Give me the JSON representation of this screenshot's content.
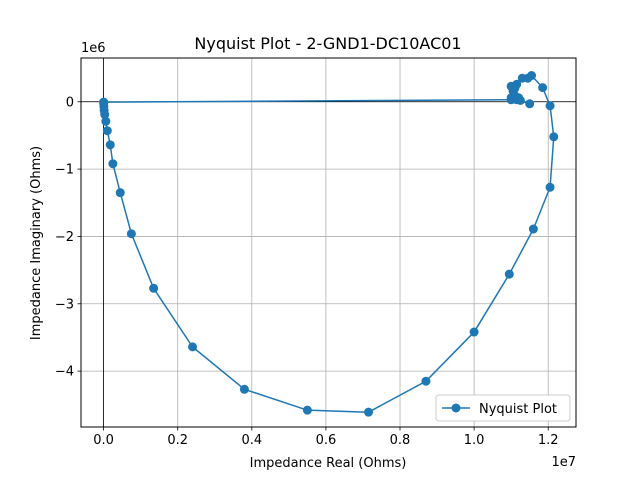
{
  "chart_data": {
    "type": "line",
    "title": "Nyquist Plot - 2-GND1-DC10AC01",
    "xlabel": "Impedance Real (Ohms)",
    "ylabel": "Impedance Imaginary (Ohms)",
    "x_offset_label": "1e7",
    "y_offset_label": "1e6",
    "xlim": [
      -610000,
      12750000
    ],
    "ylim": [
      -4830000,
      650000
    ],
    "x_ticks": [
      0,
      2000000,
      4000000,
      6000000,
      8000000,
      10000000,
      12000000
    ],
    "x_tick_labels": [
      "0.0",
      "0.2",
      "0.4",
      "0.6",
      "0.8",
      "1.0",
      "1.2"
    ],
    "y_ticks": [
      0,
      -1000000,
      -2000000,
      -3000000,
      -4000000
    ],
    "y_tick_labels": [
      "0",
      "−1",
      "−2",
      "−3",
      "−4"
    ],
    "grid": true,
    "zero_lines": true,
    "legend_position": "lower-right",
    "color": "#1f77b4",
    "series": [
      {
        "name": "Nyquist Plot",
        "marker": "circle",
        "x": [
          11000000,
          11050000,
          11150000,
          11100000,
          11300000,
          11450000,
          11550000,
          11850000,
          12050000,
          12150000,
          12050000,
          11600000,
          10950000,
          10000000,
          8700000,
          7150000,
          5500000,
          3800000,
          2400000,
          1350000,
          750000,
          450000,
          250000,
          180000,
          100000,
          60000,
          30000,
          15000,
          8000,
          3000,
          1000,
          11000000,
          11100000,
          11200000,
          11250000,
          11500000,
          11000000,
          11100000,
          11150000
        ],
        "y": [
          230000,
          160000,
          260000,
          200000,
          350000,
          350000,
          390000,
          210000,
          -60000,
          -520000,
          -1270000,
          -1890000,
          -2560000,
          -3420000,
          -4150000,
          -4610000,
          -4580000,
          -4270000,
          -3640000,
          -2770000,
          -1960000,
          -1350000,
          -920000,
          -640000,
          -430000,
          -290000,
          -190000,
          -130000,
          -70000,
          -30000,
          -5000,
          30000,
          40000,
          60000,
          20000,
          -30000,
          60000,
          90000,
          30000
        ]
      }
    ]
  }
}
